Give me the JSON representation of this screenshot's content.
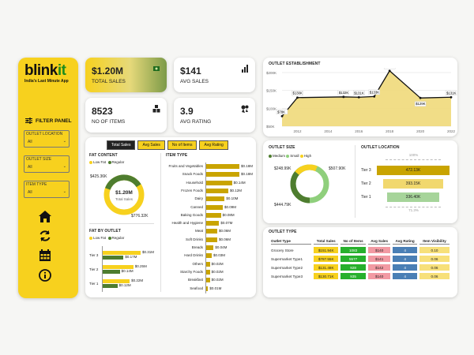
{
  "brand": {
    "name_a": "blink",
    "name_b": "it",
    "tagline": "India's Last Minute App"
  },
  "sidebar": {
    "filter_title": "FILTER  PANEL",
    "filters": [
      {
        "label": "OUTLET LOCATION",
        "value": "All"
      },
      {
        "label": "OUTLET SIZE",
        "value": "All"
      },
      {
        "label": "ITEM TYPE",
        "value": "All"
      }
    ],
    "nav_icons": [
      "home-icon",
      "refresh-icon",
      "calendar-icon",
      "info-icon"
    ]
  },
  "kpis": [
    {
      "value": "$1.20M",
      "label": "TOTAL SALES",
      "icon": "money-icon"
    },
    {
      "value": "$141",
      "label": "AVG SALES",
      "icon": "bar-chart-icon"
    },
    {
      "value": "8523",
      "label": "NO OF ITEMS",
      "icon": "boxes-icon"
    },
    {
      "value": "3.9",
      "label": "AVG RATING",
      "icon": "rating-icon"
    }
  ],
  "tabs": [
    "Total Sales",
    "Avg Sales",
    "No of Items",
    "Avg Rating"
  ],
  "fat_content": {
    "title": "FAT CONTENT",
    "legend": [
      "Low Fat",
      "Regular"
    ],
    "center_value": "$1.20M",
    "center_label": "Total Sales",
    "label_regular": "$425.36K",
    "label_lowfat": "$776.32K"
  },
  "fat_by_outlet": {
    "title": "FAT BY OUTLET",
    "legend": [
      "Low Fat",
      "Regular"
    ],
    "tiers": [
      {
        "name": "Tier 3",
        "lowfat": "$0.31M",
        "regular": "$0.17M"
      },
      {
        "name": "Tier 2",
        "lowfat": "$0.25M",
        "regular": "$0.14M"
      },
      {
        "name": "Tier 1",
        "lowfat": "$0.22M",
        "regular": "$0.12M"
      }
    ]
  },
  "item_type": {
    "title": "ITEM TYPE",
    "items": [
      {
        "name": "Fruits and Vegetables",
        "value": "$0.18M",
        "num": 0.18
      },
      {
        "name": "Snack Foods",
        "value": "$0.18M",
        "num": 0.18
      },
      {
        "name": "Household",
        "value": "$0.14M",
        "num": 0.14
      },
      {
        "name": "Frozen Foods",
        "value": "$0.12M",
        "num": 0.12
      },
      {
        "name": "Dairy",
        "value": "$0.10M",
        "num": 0.1
      },
      {
        "name": "Canned",
        "value": "$0.09M",
        "num": 0.09
      },
      {
        "name": "Baking Goods",
        "value": "$0.08M",
        "num": 0.08
      },
      {
        "name": "Health and Hygiene",
        "value": "$0.07M",
        "num": 0.07
      },
      {
        "name": "Meat",
        "value": "$0.06M",
        "num": 0.06
      },
      {
        "name": "Soft Drinks",
        "value": "$0.06M",
        "num": 0.06
      },
      {
        "name": "Breads",
        "value": "$0.04M",
        "num": 0.04
      },
      {
        "name": "Hard Drinks",
        "value": "$0.03M",
        "num": 0.03
      },
      {
        "name": "Others",
        "value": "$0.02M",
        "num": 0.02
      },
      {
        "name": "Starchy Foods",
        "value": "$0.02M",
        "num": 0.02
      },
      {
        "name": "Breakfast",
        "value": "$0.02M",
        "num": 0.02
      },
      {
        "name": "Seafood",
        "value": "$0.01M",
        "num": 0.01
      }
    ]
  },
  "outlet_establishment": {
    "title": "OUTLET ESTABLISHMENT",
    "y_ticks": [
      "$200K",
      "$150K",
      "$100K",
      "$50K"
    ],
    "x_ticks": [
      "2012",
      "2014",
      "2016",
      "2018",
      "2020",
      "2022"
    ],
    "points": [
      {
        "year": 2011,
        "label": "$78K",
        "val": 78
      },
      {
        "year": 2012,
        "label": "$130K",
        "val": 130
      },
      {
        "year": 2015,
        "label": "$132K",
        "val": 132
      },
      {
        "year": 2016,
        "label": "$131K",
        "val": 131
      },
      {
        "year": 2017,
        "label": "$133K",
        "val": 133
      },
      {
        "year": 2018,
        "label": "$205K",
        "val": 205
      },
      {
        "year": 2020,
        "label": "$129K",
        "val": 129
      },
      {
        "year": 2022,
        "label": "$131K",
        "val": 131
      }
    ],
    "extra_labels": [
      {
        "label": "$132K"
      },
      {
        "label": "$131K"
      }
    ]
  },
  "outlet_size": {
    "title": "OUTLET SIZE",
    "legend": [
      "Medium",
      "Small",
      "High"
    ],
    "label_high": "$248.99K",
    "label_medium": "$507.90K",
    "label_small": "$444.79K"
  },
  "outlet_location": {
    "title": "OUTLET LOCATION",
    "top_label": "100%",
    "bottom_label": "71.3%",
    "tiers": [
      {
        "name": "Tier 3",
        "value": "472.13K",
        "color": "#c9a400"
      },
      {
        "name": "Tier 2",
        "value": "393.15K",
        "color": "#f1d86e"
      },
      {
        "name": "Tier 1",
        "value": "336.40K",
        "color": "#a6d49a"
      }
    ]
  },
  "outlet_type": {
    "title": "OUTLET TYPE",
    "headers": [
      "Outlet Type",
      "Total Sales",
      "No of Items",
      "Avg Sales",
      "Avg Rating",
      "Item Visibility"
    ],
    "rows": [
      [
        "Grocery Store",
        "$151.94K",
        "1083",
        "$140",
        "4",
        "0.10"
      ],
      [
        "Supermarket Type1",
        "$787.55K",
        "5577",
        "$141",
        "4",
        "0.06"
      ],
      [
        "Supermarket Type2",
        "$131.48K",
        "928",
        "$142",
        "4",
        "0.06"
      ],
      [
        "Supermarket Type3",
        "$130.71K",
        "935",
        "$140",
        "4",
        "0.06"
      ]
    ]
  },
  "colors": {
    "brand_yellow": "#f7d11e",
    "brand_green": "#1c8c1c",
    "olive": "#7a9a3a",
    "dark_green": "#4e7d2f"
  },
  "chart_data": [
    {
      "type": "area",
      "title": "OUTLET ESTABLISHMENT",
      "x": [
        2011,
        2012,
        2015,
        2016,
        2017,
        2018,
        2020,
        2022
      ],
      "values": [
        78,
        130,
        132,
        131,
        133,
        205,
        129,
        131
      ],
      "ylabel": "",
      "ylim": [
        50,
        200
      ]
    },
    {
      "type": "bar",
      "title": "ITEM TYPE",
      "categories": [
        "Fruits and Vegetables",
        "Snack Foods",
        "Household",
        "Frozen Foods",
        "Dairy",
        "Canned",
        "Baking Goods",
        "Health and Hygiene",
        "Meat",
        "Soft Drinks",
        "Breads",
        "Hard Drinks",
        "Others",
        "Starchy Foods",
        "Breakfast",
        "Seafood"
      ],
      "values": [
        0.18,
        0.18,
        0.14,
        0.12,
        0.1,
        0.09,
        0.08,
        0.07,
        0.06,
        0.06,
        0.04,
        0.03,
        0.02,
        0.02,
        0.02,
        0.01
      ]
    },
    {
      "type": "bar",
      "title": "FAT BY OUTLET",
      "categories": [
        "Tier 3",
        "Tier 2",
        "Tier 1"
      ],
      "series": [
        {
          "name": "Low Fat",
          "values": [
            0.31,
            0.25,
            0.22
          ]
        },
        {
          "name": "Regular",
          "values": [
            0.17,
            0.14,
            0.12
          ]
        }
      ]
    },
    {
      "type": "pie",
      "title": "FAT CONTENT",
      "categories": [
        "Low Fat",
        "Regular"
      ],
      "values": [
        776.32,
        425.36
      ]
    },
    {
      "type": "pie",
      "title": "OUTLET SIZE",
      "categories": [
        "Medium",
        "Small",
        "High"
      ],
      "values": [
        507.9,
        444.79,
        248.99
      ]
    }
  ]
}
